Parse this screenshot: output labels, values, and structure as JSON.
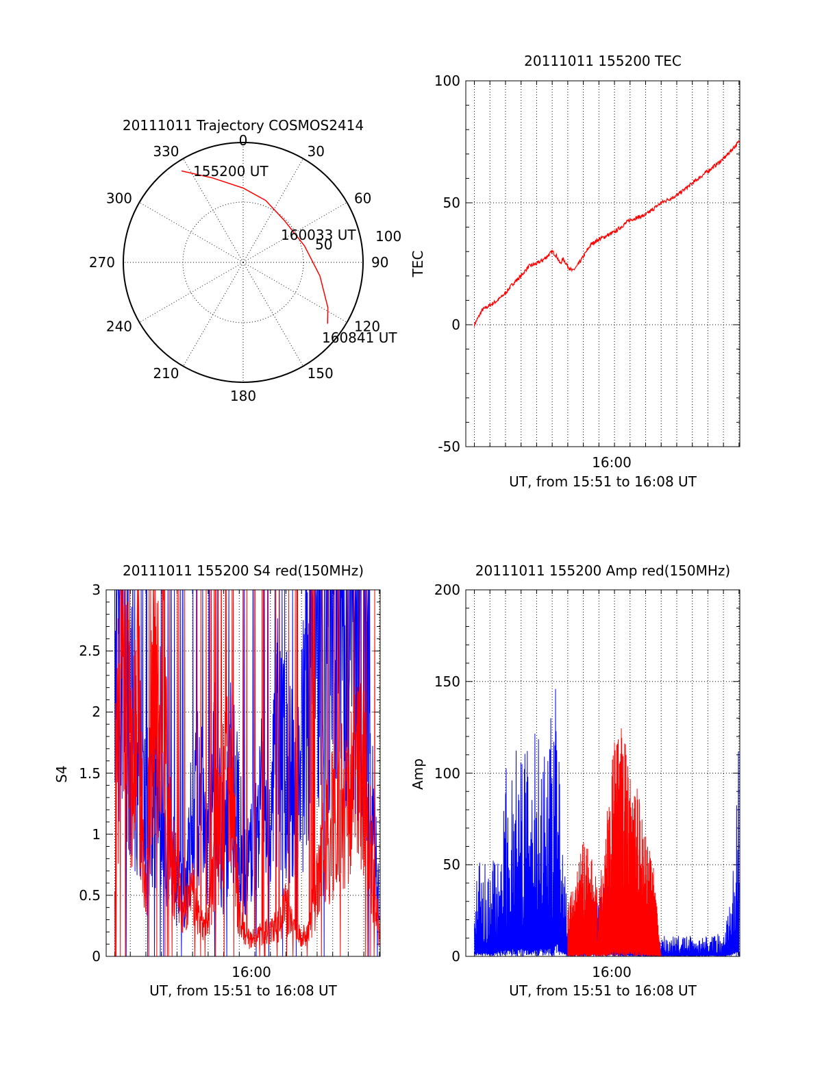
{
  "colors": {
    "red": "#ff0000",
    "blue": "#0000ff",
    "axes": "#000000"
  },
  "chart_data": [
    {
      "type": "polar",
      "title": "20111011 Trajectory COSMOS2414",
      "angle_labels": [
        "0",
        "30",
        "60",
        "90",
        "120",
        "150",
        "180",
        "210",
        "240",
        "270",
        "300",
        "330"
      ],
      "radial_labels": [
        "50",
        "100"
      ],
      "rlim": [
        0,
        100
      ],
      "trajectory": {
        "color": "#ff0000",
        "points": [
          {
            "az": 326,
            "r": 92,
            "label": "155200 UT"
          },
          {
            "az": 340,
            "r": 75
          },
          {
            "az": 0,
            "r": 62
          },
          {
            "az": 20,
            "r": 55
          },
          {
            "az": 45,
            "r": 49,
            "label": "160033 UT"
          },
          {
            "az": 75,
            "r": 53
          },
          {
            "az": 100,
            "r": 65
          },
          {
            "az": 118,
            "r": 80
          },
          {
            "az": 126,
            "r": 87,
            "label": "160841 UT"
          }
        ]
      }
    },
    {
      "type": "line",
      "title": "20111011 155200 TEC",
      "ylabel": "TEC",
      "xlabel": "UT, from 15:51 to 16:08 UT",
      "ylim": [
        -50,
        100
      ],
      "yticks": [
        "100",
        "50",
        "0",
        "-50"
      ],
      "xticks": [
        "16:00"
      ],
      "series": [
        {
          "color": "#ff0000",
          "x": [
            0,
            0.5,
            1,
            1.5,
            2,
            2.5,
            3,
            3.5,
            4,
            4.5,
            5,
            5.3,
            5.5,
            5.7,
            6,
            6.3,
            6.6,
            7,
            7.5,
            8,
            9,
            10,
            11,
            12,
            13,
            14,
            15,
            16,
            17
          ],
          "y": [
            0,
            6,
            8,
            10,
            13,
            17,
            20,
            24,
            25,
            27,
            30,
            28,
            25,
            27,
            24,
            22,
            24,
            28,
            33,
            35,
            38,
            43,
            45,
            50,
            53,
            58,
            63,
            68,
            75
          ]
        }
      ]
    },
    {
      "type": "line",
      "title": "20111011 155200 S4 red(150MHz)",
      "ylabel": "S4",
      "xlabel": "UT, from 15:51 to 16:08 UT",
      "ylim": [
        0,
        3
      ],
      "yticks": [
        "3",
        "2.5",
        "2",
        "1.5",
        "1",
        "0.5",
        "0"
      ],
      "xticks": [
        "16:00"
      ],
      "series": [
        {
          "color": "#0000ff",
          "x": [
            0,
            0.5,
            1,
            1.5,
            2,
            2.5,
            3,
            3.5,
            4,
            4.5,
            5,
            5.5,
            6,
            6.5,
            7,
            7.5,
            8,
            8.5,
            9,
            9.5,
            10,
            10.5,
            11,
            11.5,
            12,
            12.5,
            13,
            13.5,
            14,
            14.5,
            15,
            15.5,
            16,
            16.5,
            17
          ],
          "y": [
            2.6,
            2.8,
            2.0,
            1.5,
            1.2,
            1.3,
            1.1,
            0.9,
            0.6,
            0.5,
            1.2,
            1.3,
            0.8,
            1.5,
            0.8,
            1.6,
            1.0,
            0.7,
            0.9,
            1.3,
            1.0,
            1.8,
            1.6,
            1.3,
            1.6,
            2.3,
            2.5,
            2.8,
            2.6,
            2.9,
            2.7,
            2.8,
            2.4,
            1.3,
            0.4
          ]
        },
        {
          "color": "#ff0000",
          "x": [
            0,
            0.5,
            1,
            1.5,
            2,
            2.5,
            3,
            3.5,
            4,
            4.5,
            5,
            5.5,
            6,
            6.5,
            7,
            7.5,
            8,
            8.5,
            9,
            9.5,
            10,
            10.5,
            11,
            11.5,
            12,
            12.5,
            13,
            13.5,
            14,
            14.5,
            15,
            15.5,
            16,
            16.5,
            17
          ],
          "y": [
            1.2,
            2.6,
            1.5,
            2.0,
            0.4,
            2.5,
            2.2,
            1.0,
            0.6,
            0.35,
            0.5,
            0.25,
            0.3,
            0.9,
            1.3,
            1.4,
            0.3,
            0.15,
            0.15,
            0.2,
            0.2,
            0.25,
            0.4,
            0.2,
            0.15,
            0.2,
            0.6,
            0.9,
            1.1,
            1.3,
            1.2,
            1.5,
            1.4,
            0.8,
            0.15
          ]
        }
      ]
    },
    {
      "type": "line",
      "title": "20111011 155200 Amp red(150MHz)",
      "ylabel": "Amp",
      "xlabel": "UT, from 15:51 to 16:08 UT",
      "ylim": [
        0,
        200
      ],
      "yticks": [
        "200",
        "150",
        "100",
        "50",
        "0"
      ],
      "xticks": [
        "16:00"
      ],
      "series": [
        {
          "color": "#0000ff",
          "x": [
            0,
            0.5,
            1,
            1.5,
            2,
            2.5,
            3,
            3.5,
            4,
            4.5,
            5,
            5.3,
            5.5,
            6,
            6.5,
            7,
            7.5,
            8,
            8.5,
            9,
            9.5,
            10,
            10.5,
            11,
            11.5,
            12,
            13,
            14,
            15,
            16,
            16.5,
            17
          ],
          "y": [
            35,
            40,
            30,
            50,
            75,
            80,
            85,
            80,
            90,
            95,
            100,
            150,
            60,
            20,
            15,
            20,
            30,
            25,
            30,
            25,
            20,
            15,
            12,
            10,
            9,
            8,
            8,
            8,
            8,
            10,
            25,
            90
          ]
        },
        {
          "color": "#ff0000",
          "x": [
            6,
            6.5,
            7,
            7.5,
            8,
            8.5,
            9,
            9.5,
            10,
            10.5,
            11,
            11.5,
            12
          ],
          "y": [
            20,
            35,
            45,
            40,
            25,
            55,
            85,
            90,
            75,
            65,
            50,
            35,
            0
          ]
        }
      ]
    }
  ]
}
